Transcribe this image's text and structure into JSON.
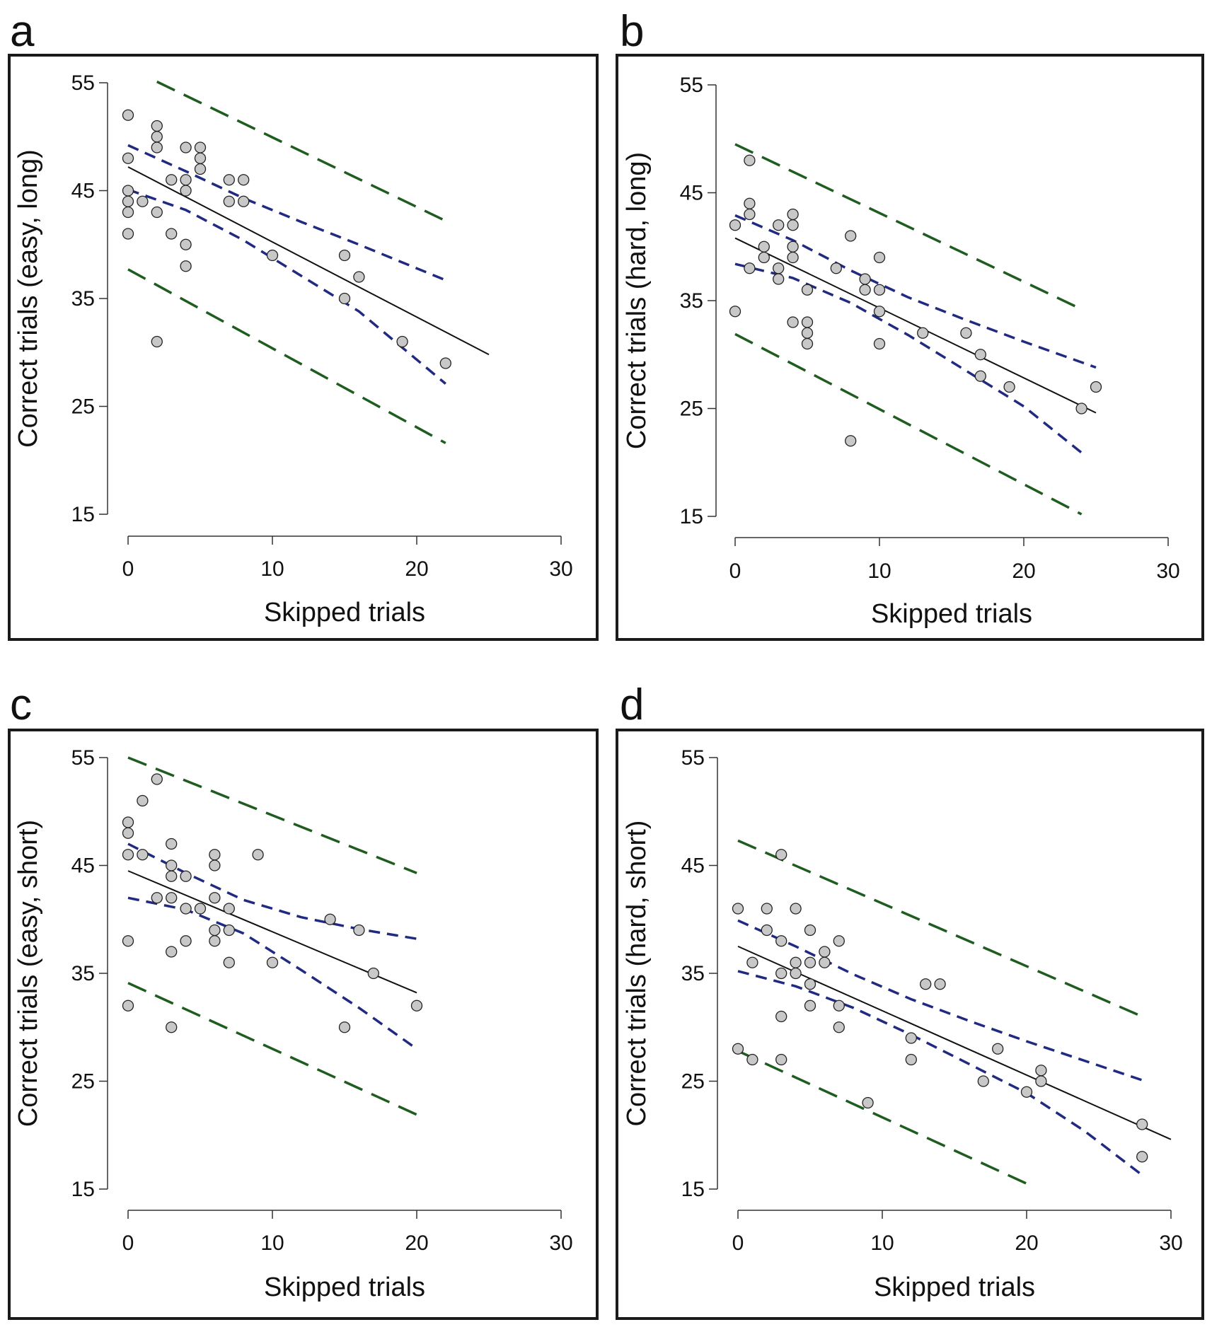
{
  "panels": [
    {
      "letter": "a"
    },
    {
      "letter": "b"
    },
    {
      "letter": "c"
    },
    {
      "letter": "d"
    }
  ],
  "colors": {
    "prediction_band": "#1f5c1f",
    "confidence_band": "#1f2a80",
    "fit_line": "#111111",
    "point_fill": "#c8c8c8",
    "point_stroke": "#222222"
  },
  "chart_data": [
    {
      "panel": "a",
      "type": "scatter",
      "xlabel": "Skipped trials",
      "ylabel": "Correct trials (easy, long)",
      "xlim": [
        0,
        30
      ],
      "ylim": [
        15,
        55
      ],
      "xticks": [
        "0",
        "10",
        "20",
        "30"
      ],
      "yticks": [
        "15",
        "25",
        "35",
        "45",
        "55"
      ],
      "points": [
        [
          0,
          52
        ],
        [
          0,
          48
        ],
        [
          0,
          45
        ],
        [
          0,
          44
        ],
        [
          0,
          43
        ],
        [
          0,
          41
        ],
        [
          1,
          44
        ],
        [
          2,
          51
        ],
        [
          2,
          50
        ],
        [
          2,
          49
        ],
        [
          2,
          43
        ],
        [
          2,
          31
        ],
        [
          3,
          46
        ],
        [
          3,
          41
        ],
        [
          4,
          49
        ],
        [
          4,
          46
        ],
        [
          4,
          45
        ],
        [
          4,
          40
        ],
        [
          4,
          38
        ],
        [
          5,
          49
        ],
        [
          5,
          48
        ],
        [
          5,
          47
        ],
        [
          7,
          46
        ],
        [
          7,
          44
        ],
        [
          8,
          46
        ],
        [
          8,
          44
        ],
        [
          10,
          39
        ],
        [
          15,
          39
        ],
        [
          15,
          35
        ],
        [
          16,
          37
        ],
        [
          19,
          31
        ],
        [
          22,
          29
        ]
      ],
      "fit": {
        "x": [
          0,
          25
        ],
        "y": [
          47.2,
          29.8
        ]
      },
      "conf_upper": {
        "x": [
          0,
          4,
          8,
          12,
          16,
          22
        ],
        "y": [
          49.2,
          46.8,
          44.3,
          42.1,
          40.0,
          36.7
        ]
      },
      "conf_lower": {
        "x": [
          0,
          4,
          8,
          12,
          16,
          22
        ],
        "y": [
          45.1,
          43.2,
          40.4,
          37.1,
          33.8,
          27.1
        ]
      },
      "pred_upper": {
        "x": [
          2,
          22
        ],
        "y": [
          55.1,
          42.2
        ]
      },
      "pred_lower": {
        "x": [
          0,
          22
        ],
        "y": [
          37.7,
          21.6
        ]
      }
    },
    {
      "panel": "b",
      "type": "scatter",
      "xlabel": "Skipped trials",
      "ylabel": "Correct trials (hard, long)",
      "xlim": [
        0,
        30
      ],
      "ylim": [
        15,
        55
      ],
      "xticks": [
        "0",
        "10",
        "20",
        "30"
      ],
      "yticks": [
        "15",
        "25",
        "35",
        "45",
        "55"
      ],
      "points": [
        [
          0,
          42
        ],
        [
          0,
          34
        ],
        [
          1,
          48
        ],
        [
          1,
          44
        ],
        [
          1,
          43
        ],
        [
          1,
          38
        ],
        [
          2,
          40
        ],
        [
          2,
          39
        ],
        [
          3,
          42
        ],
        [
          3,
          38
        ],
        [
          3,
          37
        ],
        [
          4,
          43
        ],
        [
          4,
          42
        ],
        [
          4,
          40
        ],
        [
          4,
          39
        ],
        [
          4,
          33
        ],
        [
          5,
          36
        ],
        [
          5,
          33
        ],
        [
          5,
          32
        ],
        [
          5,
          31
        ],
        [
          7,
          38
        ],
        [
          8,
          41
        ],
        [
          8,
          22
        ],
        [
          9,
          37
        ],
        [
          9,
          36
        ],
        [
          10,
          39
        ],
        [
          10,
          36
        ],
        [
          10,
          34
        ],
        [
          10,
          31
        ],
        [
          13,
          32
        ],
        [
          16,
          32
        ],
        [
          17,
          30
        ],
        [
          17,
          28
        ],
        [
          19,
          27
        ],
        [
          24,
          25
        ],
        [
          25,
          27
        ]
      ],
      "fit": {
        "x": [
          0,
          25
        ],
        "y": [
          40.8,
          24.6
        ]
      },
      "conf_upper": {
        "x": [
          0,
          4,
          8,
          12,
          16,
          20,
          25
        ],
        "y": [
          42.9,
          40.6,
          37.8,
          35.3,
          33.2,
          31.2,
          28.8
        ]
      },
      "conf_lower": {
        "x": [
          0,
          4,
          8,
          12,
          16,
          20,
          24
        ],
        "y": [
          38.4,
          37.1,
          34.8,
          31.8,
          28.5,
          25.2,
          20.9
        ]
      },
      "pred_upper": {
        "x": [
          0,
          24
        ],
        "y": [
          49.5,
          34.2
        ]
      },
      "pred_lower": {
        "x": [
          0,
          24
        ],
        "y": [
          31.9,
          15.2
        ]
      }
    },
    {
      "panel": "c",
      "type": "scatter",
      "xlabel": "Skipped trials",
      "ylabel": "Correct trials (easy, short)",
      "xlim": [
        0,
        30
      ],
      "ylim": [
        15,
        55
      ],
      "xticks": [
        "0",
        "10",
        "20",
        "30"
      ],
      "yticks": [
        "15",
        "25",
        "35",
        "45",
        "55"
      ],
      "points": [
        [
          0,
          49
        ],
        [
          0,
          48
        ],
        [
          0,
          46
        ],
        [
          0,
          38
        ],
        [
          0,
          32
        ],
        [
          1,
          51
        ],
        [
          1,
          46
        ],
        [
          2,
          53
        ],
        [
          2,
          42
        ],
        [
          3,
          47
        ],
        [
          3,
          45
        ],
        [
          3,
          44
        ],
        [
          3,
          42
        ],
        [
          3,
          37
        ],
        [
          3,
          30
        ],
        [
          4,
          44
        ],
        [
          4,
          41
        ],
        [
          4,
          38
        ],
        [
          5,
          41
        ],
        [
          6,
          46
        ],
        [
          6,
          45
        ],
        [
          6,
          42
        ],
        [
          6,
          39
        ],
        [
          6,
          38
        ],
        [
          7,
          41
        ],
        [
          7,
          39
        ],
        [
          7,
          36
        ],
        [
          9,
          46
        ],
        [
          10,
          36
        ],
        [
          14,
          40
        ],
        [
          15,
          30
        ],
        [
          16,
          39
        ],
        [
          17,
          35
        ],
        [
          20,
          32
        ]
      ],
      "fit": {
        "x": [
          0,
          20
        ],
        "y": [
          44.5,
          33.2
        ]
      },
      "conf_upper": {
        "x": [
          0,
          4,
          8,
          12,
          16,
          20
        ],
        "y": [
          47.0,
          44.3,
          41.8,
          40.2,
          39.1,
          38.2
        ]
      },
      "conf_lower": {
        "x": [
          0,
          4,
          8,
          12,
          16,
          20
        ],
        "y": [
          42.0,
          40.9,
          38.7,
          35.3,
          31.8,
          28.0
        ]
      },
      "pred_upper": {
        "x": [
          0,
          20
        ],
        "y": [
          55.0,
          44.3
        ]
      },
      "pred_lower": {
        "x": [
          0,
          20
        ],
        "y": [
          34.1,
          21.9
        ]
      }
    },
    {
      "panel": "d",
      "type": "scatter",
      "xlabel": "Skipped trials",
      "ylabel": "Correct trials (hard, short)",
      "xlim": [
        0,
        30
      ],
      "ylim": [
        15,
        55
      ],
      "xticks": [
        "0",
        "10",
        "20",
        "30"
      ],
      "yticks": [
        "15",
        "25",
        "35",
        "45",
        "55"
      ],
      "points": [
        [
          0,
          41
        ],
        [
          0,
          28
        ],
        [
          1,
          36
        ],
        [
          1,
          27
        ],
        [
          2,
          41
        ],
        [
          2,
          39
        ],
        [
          3,
          46
        ],
        [
          3,
          38
        ],
        [
          3,
          35
        ],
        [
          3,
          31
        ],
        [
          3,
          27
        ],
        [
          4,
          41
        ],
        [
          4,
          36
        ],
        [
          4,
          35
        ],
        [
          5,
          39
        ],
        [
          5,
          36
        ],
        [
          5,
          34
        ],
        [
          5,
          32
        ],
        [
          6,
          37
        ],
        [
          6,
          36
        ],
        [
          7,
          38
        ],
        [
          7,
          32
        ],
        [
          7,
          30
        ],
        [
          9,
          23
        ],
        [
          12,
          29
        ],
        [
          12,
          27
        ],
        [
          13,
          34
        ],
        [
          14,
          34
        ],
        [
          17,
          25
        ],
        [
          18,
          28
        ],
        [
          20,
          24
        ],
        [
          21,
          26
        ],
        [
          21,
          25
        ],
        [
          28,
          21
        ],
        [
          28,
          18
        ]
      ],
      "fit": {
        "x": [
          0,
          30
        ],
        "y": [
          37.5,
          19.6
        ]
      },
      "conf_upper": {
        "x": [
          0,
          4,
          8,
          12,
          16,
          20,
          24,
          28
        ],
        "y": [
          39.9,
          37.5,
          34.9,
          32.6,
          30.6,
          28.7,
          26.9,
          25.1
        ]
      },
      "conf_lower": {
        "x": [
          0,
          4,
          8,
          12,
          16,
          20,
          24,
          28
        ],
        "y": [
          35.2,
          33.8,
          31.8,
          29.3,
          26.6,
          23.9,
          20.4,
          16.3
        ]
      },
      "pred_upper": {
        "x": [
          0,
          28
        ],
        "y": [
          47.3,
          31.0
        ]
      },
      "pred_lower": {
        "x": [
          0,
          20.5
        ],
        "y": [
          27.8,
          15.2
        ]
      }
    }
  ]
}
